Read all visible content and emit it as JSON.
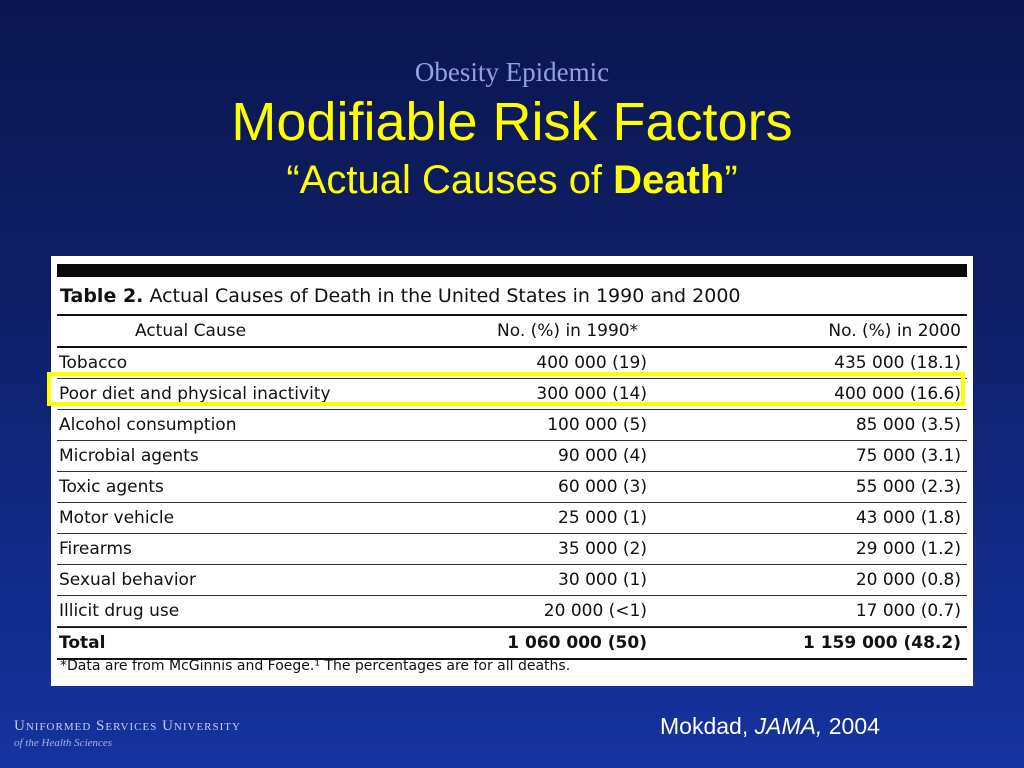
{
  "slide": {
    "overtitle": "Obesity Epidemic",
    "title": "Modifiable Risk Factors",
    "subtitle_prefix": "“Actual Causes of ",
    "subtitle_bold": "Death",
    "subtitle_suffix": "”"
  },
  "table": {
    "caption_label": "Table 2.",
    "caption_text": "Actual Causes of Death in the United States in 1990 and 2000",
    "columns": [
      "Actual Cause",
      "No. (%) in 1990*",
      "No. (%) in 2000"
    ],
    "rows": [
      {
        "cause": "Tobacco",
        "y1990": "400 000 (19)",
        "y2000": "435 000 (18.1)"
      },
      {
        "cause": "Poor diet and physical inactivity",
        "y1990": "300 000 (14)",
        "y2000": "400 000 (16.6)"
      },
      {
        "cause": "Alcohol consumption",
        "y1990": "100 000 (5)",
        "y2000": "85 000 (3.5)"
      },
      {
        "cause": "Microbial agents",
        "y1990": "90 000 (4)",
        "y2000": "75 000 (3.1)"
      },
      {
        "cause": "Toxic agents",
        "y1990": "60 000 (3)",
        "y2000": "55 000 (2.3)"
      },
      {
        "cause": "Motor vehicle",
        "y1990": "25 000 (1)",
        "y2000": "43 000 (1.8)"
      },
      {
        "cause": "Firearms",
        "y1990": "35 000 (2)",
        "y2000": "29 000 (1.2)"
      },
      {
        "cause": "Sexual behavior",
        "y1990": "30 000 (1)",
        "y2000": "20 000 (0.8)"
      },
      {
        "cause": "Illicit drug use",
        "y1990": "20 000 (<1)",
        "y2000": "17 000 (0.7)"
      }
    ],
    "total": {
      "cause": "Total",
      "y1990": "1 060 000 (50)",
      "y2000": "1 159 000 (48.2)"
    },
    "footnote": "*Data are from McGinnis and Foege.¹ The percentages are for all deaths.",
    "highlight_color": "#ffff00"
  },
  "footer": {
    "logo_line1": "Uniformed Services University",
    "logo_line2": "of the Health Sciences",
    "citation_author": "Mokdad, ",
    "citation_journal": "JAMA,",
    "citation_year": " 2004"
  }
}
